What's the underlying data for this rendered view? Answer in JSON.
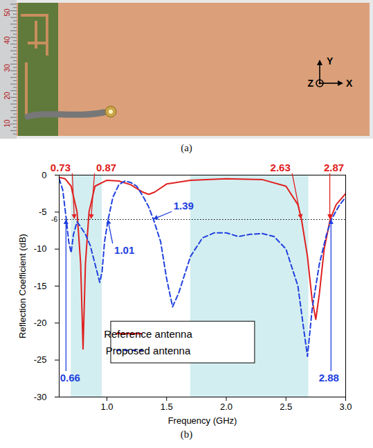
{
  "panel_a": {
    "caption": "(a)",
    "ruler_labels": [
      "50",
      "40",
      "30",
      "20",
      "10"
    ],
    "axis_labels": {
      "y": "Y",
      "z": "Z",
      "x": "X"
    }
  },
  "chart_data": {
    "type": "line",
    "caption": "(b)",
    "x_label": "Frequency (GHz)",
    "y_label": "Reflection Coefficient (dB)",
    "xlim": [
      0.6,
      3.0
    ],
    "xticks": [
      {
        "value": 1.0,
        "label": "1.0"
      },
      {
        "value": 1.5,
        "label": "1.5"
      },
      {
        "value": 2.0,
        "label": "2.0"
      },
      {
        "value": 2.5,
        "label": "2.5"
      },
      {
        "value": 3.0,
        "label": "3.0"
      }
    ],
    "ylim": [
      -30,
      0
    ],
    "yticks": [
      -30,
      -25,
      -20,
      -15,
      -10,
      -5,
      0
    ],
    "grid": false,
    "legend": "bottom",
    "bands": [
      [
        0.7,
        0.96
      ],
      [
        1.7,
        2.69
      ]
    ],
    "reference_line": {
      "value": -6,
      "label": "-6"
    },
    "series": [
      {
        "name": "Reference antenna",
        "color": "#e02020",
        "line_style": "solid",
        "x": [
          0.6,
          0.65,
          0.7,
          0.75,
          0.78,
          0.8,
          0.82,
          0.85,
          0.9,
          1.0,
          1.1,
          1.2,
          1.3,
          1.35,
          1.4,
          1.5,
          1.7,
          2.0,
          2.3,
          2.5,
          2.6,
          2.63,
          2.68,
          2.72,
          2.75,
          2.78,
          2.82,
          2.87,
          2.92,
          3.0
        ],
        "values": [
          -0.3,
          -0.5,
          -1.5,
          -5,
          -12,
          -23.5,
          -12,
          -5,
          -1.5,
          -0.7,
          -0.8,
          -1.3,
          -2.3,
          -2.6,
          -2.3,
          -1.2,
          -0.7,
          -0.5,
          -0.6,
          -1.5,
          -4,
          -6,
          -11,
          -17,
          -19.5,
          -16,
          -10,
          -6,
          -4,
          -2.5
        ]
      },
      {
        "name": "Proposed antenna",
        "color": "#2040e0",
        "line_style": "dashed",
        "x": [
          0.6,
          0.63,
          0.66,
          0.68,
          0.7,
          0.72,
          0.75,
          0.78,
          0.82,
          0.86,
          0.9,
          0.94,
          0.96,
          0.98,
          1.01,
          1.05,
          1.1,
          1.15,
          1.2,
          1.25,
          1.3,
          1.35,
          1.39,
          1.45,
          1.5,
          1.55,
          1.6,
          1.7,
          1.8,
          1.9,
          2.0,
          2.1,
          2.2,
          2.3,
          2.4,
          2.5,
          2.6,
          2.65,
          2.68,
          2.72,
          2.78,
          2.84,
          2.88,
          2.95,
          3.0
        ],
        "values": [
          -0.5,
          -2,
          -6,
          -9,
          -10.5,
          -8,
          -6.3,
          -7,
          -8,
          -9.5,
          -12,
          -14.5,
          -13,
          -9,
          -6,
          -3,
          -1.3,
          -0.8,
          -1,
          -1.5,
          -2.8,
          -4.3,
          -6,
          -9,
          -14,
          -17.8,
          -16,
          -11,
          -8.5,
          -7.8,
          -7.8,
          -8.3,
          -8,
          -7.9,
          -8.3,
          -10,
          -15,
          -21,
          -24.5,
          -18,
          -12,
          -8,
          -6,
          -4,
          -3
        ]
      }
    ],
    "annotations": [
      {
        "text": "0.73",
        "x": 0.73,
        "y": -6,
        "color": "#e02020"
      },
      {
        "text": "0.87",
        "x": 0.87,
        "y": -6,
        "color": "#e02020"
      },
      {
        "text": "2.63",
        "x": 2.63,
        "y": -6,
        "color": "#e02020"
      },
      {
        "text": "2.87",
        "x": 2.87,
        "y": -6,
        "color": "#e02020"
      },
      {
        "text": "0.66",
        "x": 0.66,
        "y": -6,
        "color": "#2040e0"
      },
      {
        "text": "1.01",
        "x": 1.01,
        "y": -6,
        "color": "#2040e0"
      },
      {
        "text": "1.39",
        "x": 1.39,
        "y": -6,
        "color": "#2040e0"
      },
      {
        "text": "2.88",
        "x": 2.88,
        "y": -6,
        "color": "#2040e0"
      }
    ]
  }
}
